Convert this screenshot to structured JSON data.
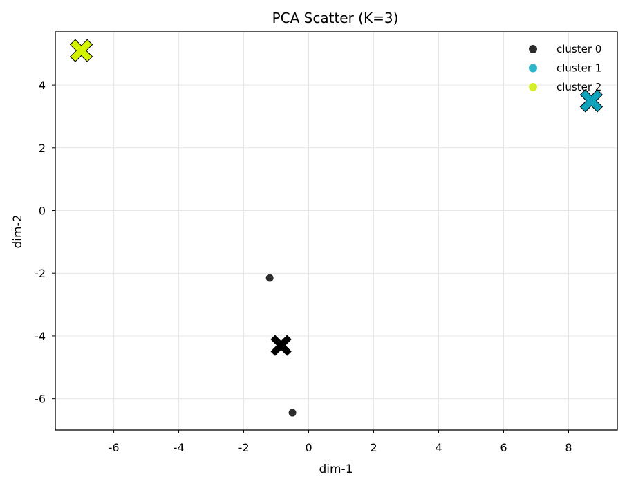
{
  "chart_data": {
    "type": "scatter",
    "title": "PCA Scatter (K=3)",
    "xlabel": "dim-1",
    "ylabel": "dim-2",
    "xlim": [
      -7.8,
      9.5
    ],
    "ylim": [
      -7.0,
      5.7
    ],
    "xticks": [
      -6,
      -4,
      -2,
      0,
      2,
      4,
      6,
      8
    ],
    "yticks": [
      -6,
      -4,
      -2,
      0,
      2,
      4
    ],
    "grid": true,
    "legend_position": "top-right",
    "series": [
      {
        "name": "cluster 0",
        "color": "#2b2b2b",
        "points": [
          [
            -1.2,
            -2.15
          ],
          [
            -0.5,
            -6.45
          ]
        ]
      },
      {
        "name": "cluster 1",
        "color": "#2cb5c8",
        "points": []
      },
      {
        "name": "cluster 2",
        "color": "#d4ee2a",
        "points": []
      }
    ],
    "centroids": [
      {
        "cluster": "cluster 0",
        "x": -0.85,
        "y": -4.3,
        "color": "#000000"
      },
      {
        "cluster": "cluster 1",
        "x": 8.7,
        "y": 3.5,
        "color": "#12a3bc"
      },
      {
        "cluster": "cluster 2",
        "x": -7.0,
        "y": 5.1,
        "color": "#d2f200"
      }
    ]
  }
}
